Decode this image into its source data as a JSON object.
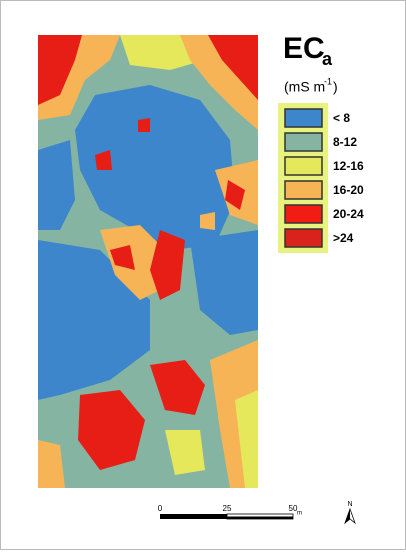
{
  "legend": {
    "title": "EC",
    "title_subscript": "a",
    "unit": "(mS m",
    "unit_superscript": "-1",
    "unit_close": ")",
    "items": [
      {
        "label": "< 8",
        "color": "#3d86cc"
      },
      {
        "label": "8-12",
        "color": "#86b4a2"
      },
      {
        "label": "12-16",
        "color": "#e4e85a"
      },
      {
        "label": "16-20",
        "color": "#f6b456"
      },
      {
        "label": "20-24",
        "color": "#f21c14"
      },
      {
        "label": ">24",
        "color": "#d8221c"
      }
    ]
  },
  "scale_bar": {
    "ticks": [
      "0",
      "25",
      "50"
    ],
    "unit": "m"
  },
  "north_arrow": "N"
}
